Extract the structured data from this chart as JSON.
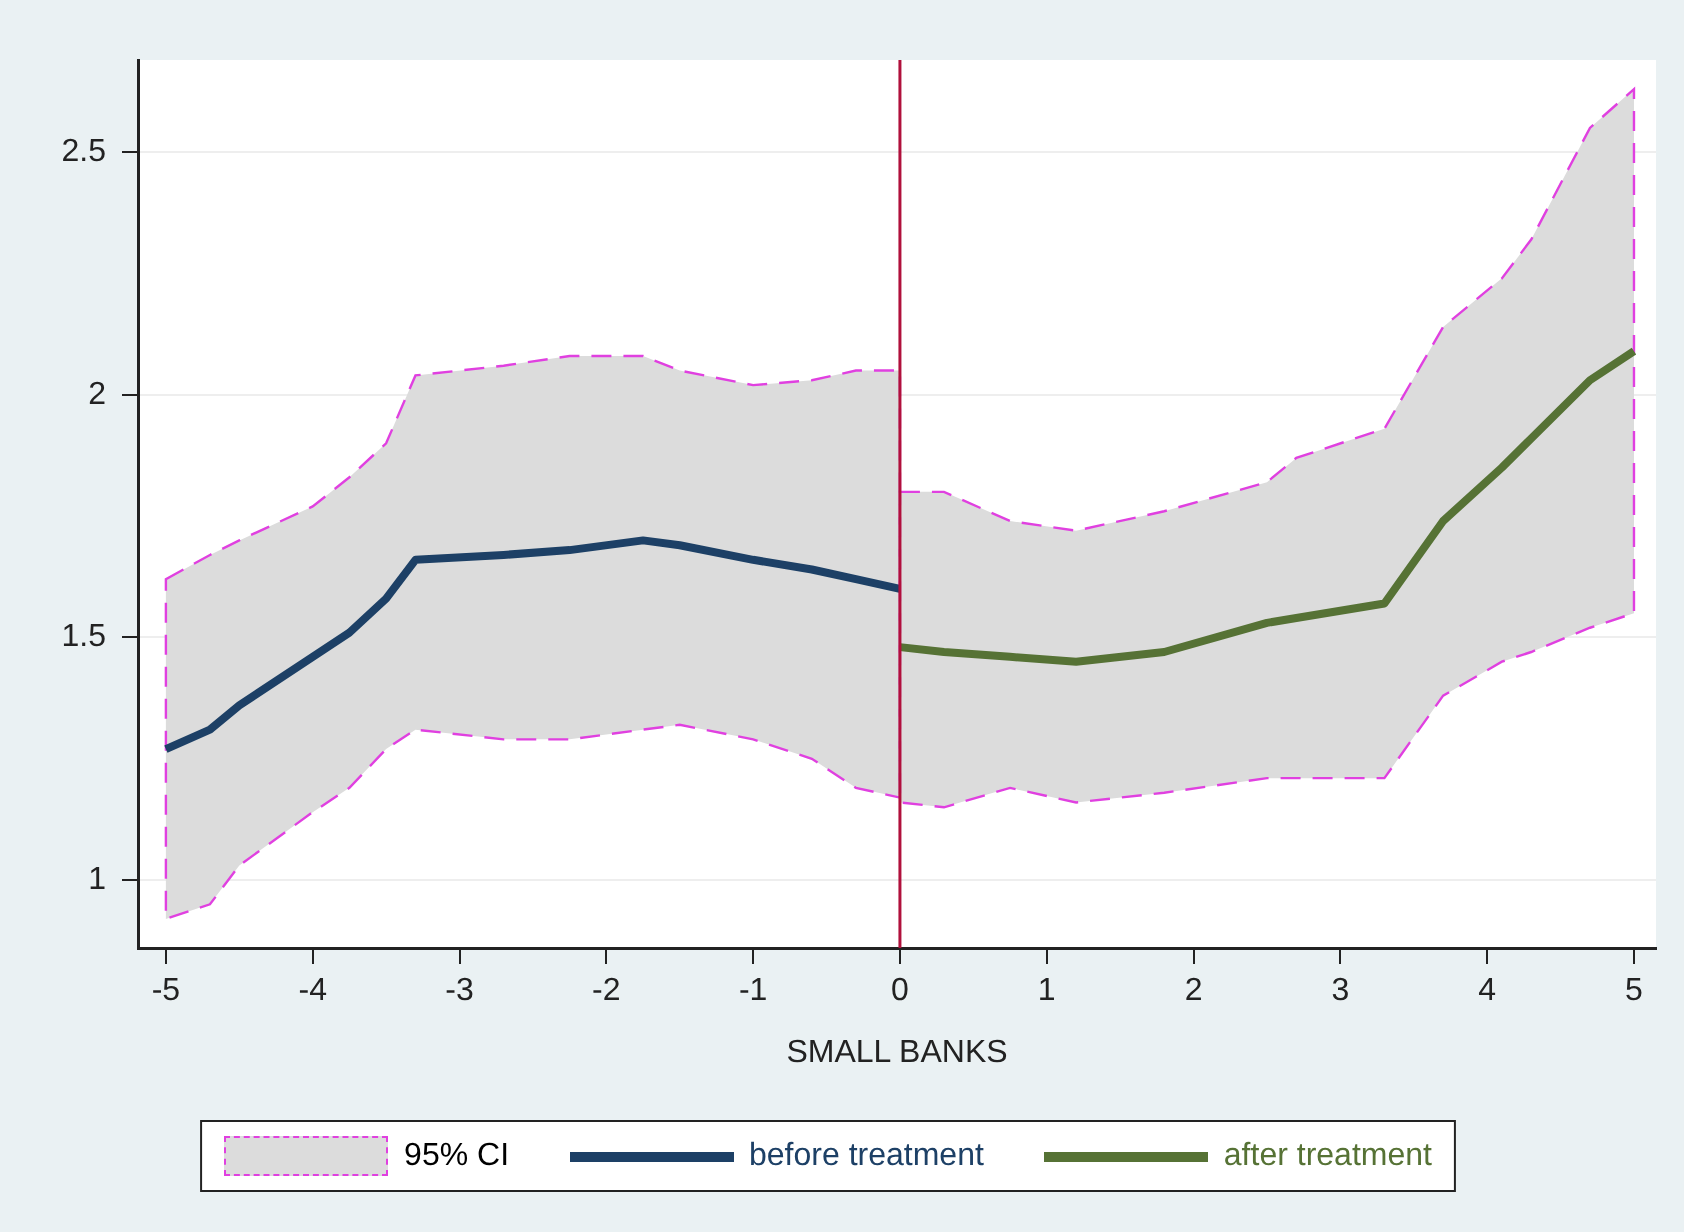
{
  "chart_data": {
    "type": "line",
    "xlabel": "SMALL BANKS",
    "xlim": [
      -5.19,
      5.15
    ],
    "xticks": [
      -5,
      -4,
      -3,
      -2,
      -1,
      0,
      1,
      2,
      3,
      4,
      5
    ],
    "ylim": [
      0.86,
      2.69
    ],
    "yticks": [
      1,
      1.5,
      2,
      2.5
    ],
    "grid": "y",
    "legend": "bottom",
    "annotations": [
      "95% CI"
    ],
    "ref_lines": [
      {
        "axis": "x",
        "value": 0,
        "color": "#b0103c"
      }
    ],
    "series": [
      {
        "name": "before treatment",
        "type": "line",
        "color": "#1d4066",
        "x": [
          -5,
          -4.7,
          -4.5,
          -4,
          -3.75,
          -3.5,
          -3.3,
          -2.7,
          -2.25,
          -1.75,
          -1.5,
          -1,
          -0.6,
          -0.3,
          0
        ],
        "values": [
          1.27,
          1.31,
          1.36,
          1.46,
          1.51,
          1.58,
          1.66,
          1.67,
          1.68,
          1.7,
          1.69,
          1.66,
          1.64,
          1.62,
          1.6
        ],
        "lower": [
          0.92,
          0.95,
          1.03,
          1.14,
          1.19,
          1.27,
          1.31,
          1.29,
          1.29,
          1.31,
          1.32,
          1.29,
          1.25,
          1.19,
          1.17
        ],
        "upper": [
          1.62,
          1.67,
          1.7,
          1.77,
          1.83,
          1.9,
          2.04,
          2.06,
          2.08,
          2.08,
          2.05,
          2.02,
          2.03,
          2.05,
          2.05
        ]
      },
      {
        "name": "after treatment",
        "type": "line",
        "color": "#567235",
        "x": [
          0,
          0.3,
          0.75,
          1.2,
          1.8,
          2.5,
          2.7,
          3.3,
          3.7,
          4.1,
          4.3,
          4.7,
          5
        ],
        "values": [
          1.48,
          1.47,
          1.46,
          1.45,
          1.47,
          1.53,
          1.54,
          1.57,
          1.74,
          1.85,
          1.91,
          2.03,
          2.09
        ],
        "lower": [
          1.16,
          1.15,
          1.19,
          1.16,
          1.18,
          1.21,
          1.21,
          1.21,
          1.38,
          1.45,
          1.47,
          1.52,
          1.55
        ],
        "upper": [
          1.8,
          1.8,
          1.74,
          1.72,
          1.76,
          1.82,
          1.87,
          1.93,
          2.14,
          2.24,
          2.32,
          2.55,
          2.63
        ]
      }
    ]
  }
}
